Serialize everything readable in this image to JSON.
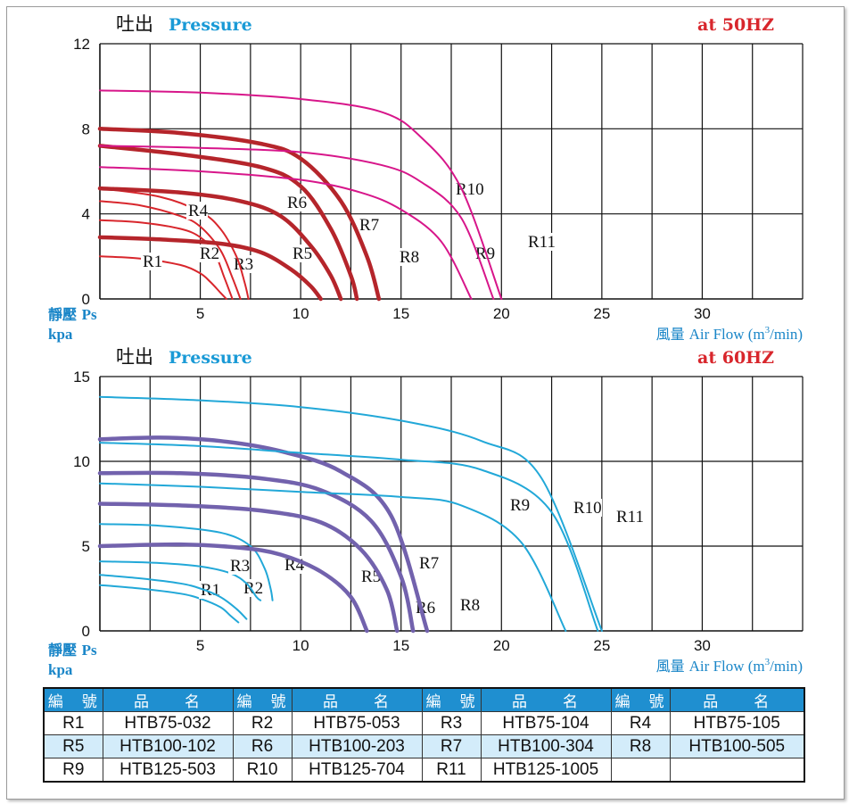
{
  "chart_data": [
    {
      "type": "line",
      "title_cn": "吐出",
      "title": "Pressure",
      "frequency": "at  50HZ",
      "ylabel_cn": "靜壓",
      "ylabel": "Ps",
      "yunit": "kpa",
      "xlabel_cn": "風量",
      "xlabel": "Air Flow (m",
      "xlabel_sup": "3",
      "xlabel_tail": "/min)",
      "xlim": [
        0,
        35
      ],
      "ylim": [
        0,
        12
      ],
      "xticks": [
        5,
        10,
        15,
        20,
        25,
        30
      ],
      "yticks": [
        0,
        4,
        8,
        12
      ],
      "grid": true,
      "series": [
        {
          "name": "R1",
          "color": "#d8262c",
          "x": [
            0,
            2,
            4,
            5,
            5.5,
            6.0,
            6.3
          ],
          "y": [
            2.0,
            1.9,
            1.6,
            1.2,
            0.8,
            0.3,
            0
          ]
        },
        {
          "name": "R2",
          "color": "#d8262c",
          "x": [
            0,
            2,
            4,
            5,
            5.7,
            6.2,
            6.6
          ],
          "y": [
            3.7,
            3.6,
            3.3,
            2.9,
            2.2,
            1.0,
            0
          ]
        },
        {
          "name": "R3",
          "color": "#d8262c",
          "x": [
            0,
            2,
            4,
            5,
            6,
            6.6,
            7.0
          ],
          "y": [
            4.6,
            4.4,
            3.9,
            3.4,
            2.3,
            1.0,
            0
          ]
        },
        {
          "name": "R4",
          "color": "#d8262c",
          "x": [
            0,
            3,
            5,
            6,
            6.8,
            7.2,
            7.4
          ],
          "y": [
            5.2,
            4.8,
            4.1,
            3.3,
            2.0,
            0.8,
            0
          ]
        },
        {
          "name": "R5",
          "color": "#b5252b",
          "heavy": true,
          "x": [
            0,
            3,
            6,
            8,
            9.5,
            10.5,
            11.0
          ],
          "y": [
            2.9,
            2.8,
            2.6,
            2.2,
            1.4,
            0.6,
            0
          ]
        },
        {
          "name": "R6",
          "color": "#b5252b",
          "heavy": true,
          "x": [
            0,
            4,
            7,
            9,
            10.5,
            11.5,
            12.0
          ],
          "y": [
            5.2,
            5.0,
            4.6,
            3.9,
            2.5,
            1.1,
            0
          ]
        },
        {
          "name": "R7",
          "color": "#b5252b",
          "heavy": true,
          "x": [
            0,
            4,
            8,
            10,
            11.5,
            12.5,
            12.8
          ],
          "y": [
            7.2,
            6.8,
            6.2,
            5.3,
            3.3,
            1.1,
            0
          ]
        },
        {
          "name": "R8",
          "color": "#b5252b",
          "heavy": true,
          "x": [
            0,
            4,
            8,
            10,
            12,
            13.3,
            13.9
          ],
          "y": [
            8.0,
            7.8,
            7.3,
            6.6,
            4.6,
            2.0,
            0
          ]
        },
        {
          "name": "R9",
          "color": "#d7168a",
          "x": [
            0,
            5,
            10,
            13,
            15,
            17,
            18.5
          ],
          "y": [
            6.2,
            6.0,
            5.6,
            5.0,
            4.2,
            2.7,
            0
          ]
        },
        {
          "name": "R10",
          "color": "#d7168a",
          "x": [
            0,
            5,
            10,
            14,
            16,
            18,
            19.6
          ],
          "y": [
            7.2,
            7.1,
            6.9,
            6.3,
            5.5,
            3.8,
            0
          ]
        },
        {
          "name": "R11",
          "color": "#d7168a",
          "x": [
            0,
            5,
            10,
            14,
            16,
            18,
            20.0
          ],
          "y": [
            9.8,
            9.7,
            9.4,
            8.8,
            7.6,
            5.2,
            0
          ]
        }
      ]
    },
    {
      "type": "line",
      "title_cn": "吐出",
      "title": "Pressure",
      "frequency": "at  60HZ",
      "ylabel_cn": "靜壓",
      "ylabel": "Ps",
      "yunit": "kpa",
      "xlabel_cn": "風量",
      "xlabel": "Air Flow (m",
      "xlabel_sup": "3",
      "xlabel_tail": "/min)",
      "xlim": [
        0,
        35
      ],
      "ylim": [
        0,
        15
      ],
      "xticks": [
        5,
        10,
        15,
        20,
        25,
        30
      ],
      "yticks": [
        0,
        5,
        10,
        15
      ],
      "grid": true,
      "series": [
        {
          "name": "R1",
          "color": "#22a8d8",
          "x": [
            0,
            2,
            4,
            5,
            6,
            6.5,
            6.9
          ],
          "y": [
            2.7,
            2.5,
            2.2,
            1.9,
            1.4,
            0.9,
            0.5
          ]
        },
        {
          "name": "R2",
          "color": "#22a8d8",
          "x": [
            0,
            2,
            4,
            5,
            6,
            6.8,
            7.3
          ],
          "y": [
            3.3,
            3.1,
            2.8,
            2.5,
            2.0,
            1.3,
            0.7
          ]
        },
        {
          "name": "R3",
          "color": "#22a8d8",
          "x": [
            0,
            3,
            5,
            6.5,
            7.3,
            7.8,
            8.0
          ],
          "y": [
            4.1,
            4.0,
            3.8,
            3.4,
            2.8,
            2.0,
            1.8
          ]
        },
        {
          "name": "R4",
          "color": "#22a8d8",
          "x": [
            0,
            3,
            6,
            7.5,
            8.2,
            8.5,
            8.6
          ],
          "y": [
            6.3,
            6.2,
            5.8,
            5.0,
            3.7,
            2.5,
            1.8
          ]
        },
        {
          "name": "R5",
          "color": "#7262ad",
          "heavy": true,
          "x": [
            0,
            4,
            7,
            9,
            11,
            12.5,
            13.3
          ],
          "y": [
            5.0,
            5.1,
            4.9,
            4.5,
            3.5,
            2.0,
            0
          ]
        },
        {
          "name": "R6",
          "color": "#7262ad",
          "heavy": true,
          "x": [
            0,
            4,
            8,
            11,
            13,
            14.3,
            14.8
          ],
          "y": [
            7.5,
            7.4,
            7.1,
            6.4,
            4.8,
            2.4,
            0
          ]
        },
        {
          "name": "R7",
          "color": "#7262ad",
          "heavy": true,
          "x": [
            0,
            4,
            8,
            11,
            13.5,
            15.0,
            15.6
          ],
          "y": [
            9.3,
            9.3,
            9.0,
            8.3,
            6.5,
            3.2,
            0
          ]
        },
        {
          "name": "R8",
          "color": "#7262ad",
          "heavy": true,
          "x": [
            0,
            3,
            6,
            9,
            12,
            14.5,
            16.3
          ],
          "y": [
            11.3,
            11.4,
            11.2,
            10.6,
            9.4,
            6.8,
            0
          ]
        },
        {
          "name": "R9",
          "color": "#22a8d8",
          "x": [
            0,
            5,
            10,
            15,
            18,
            21,
            23.2
          ],
          "y": [
            8.7,
            8.5,
            8.2,
            7.9,
            7.4,
            5.2,
            0
          ]
        },
        {
          "name": "R10",
          "color": "#22a8d8",
          "x": [
            0,
            5,
            10,
            15,
            19,
            22.5,
            24.8
          ],
          "y": [
            11.1,
            10.9,
            10.5,
            10.1,
            9.5,
            7.0,
            0
          ]
        },
        {
          "name": "R11",
          "color": "#22a8d8",
          "x": [
            0,
            5,
            10,
            15,
            19,
            22,
            25.0
          ],
          "y": [
            13.8,
            13.6,
            13.2,
            12.4,
            11.2,
            9.0,
            0
          ]
        }
      ]
    }
  ],
  "model_table": {
    "header": {
      "code": "編　號",
      "name": "品　　名"
    },
    "rows": [
      [
        [
          "R1",
          "HTB75-032"
        ],
        [
          "R2",
          "HTB75-053"
        ],
        [
          "R3",
          "HTB75-104"
        ],
        [
          "R4",
          "HTB75-105"
        ]
      ],
      [
        [
          "R5",
          "HTB100-102"
        ],
        [
          "R6",
          "HTB100-203"
        ],
        [
          "R7",
          "HTB100-304"
        ],
        [
          "R8",
          "HTB100-505"
        ]
      ],
      [
        [
          "R9",
          "HTB125-503"
        ],
        [
          "R10",
          "HTB125-704"
        ],
        [
          "R11",
          "HTB125-1005"
        ],
        [
          "",
          ""
        ]
      ]
    ]
  },
  "colors": {
    "title_blue": "#1a9ad6",
    "freq_red": "#d8262c",
    "axis_label_blue": "#1a86c8",
    "table_header": "#1f8fd0",
    "table_alt_row": "#d3ecfa"
  }
}
